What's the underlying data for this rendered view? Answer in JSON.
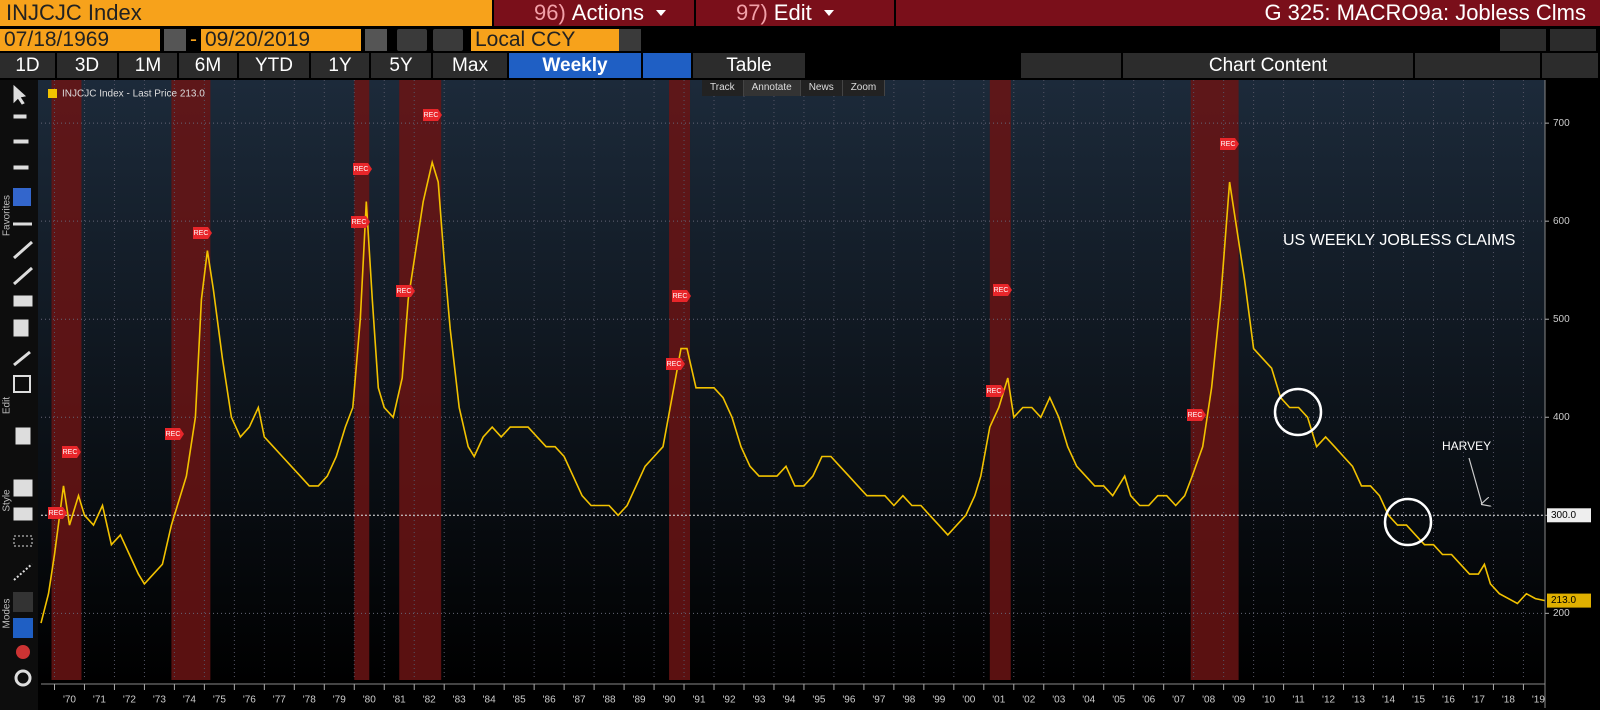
{
  "header": {
    "ticker": "INJCJC Index",
    "actions_num": "96)",
    "actions": "Actions",
    "edit_num": "97)",
    "edit": "Edit",
    "title": "G 325: MACRO9a: Jobless Clms"
  },
  "controls": {
    "start_date": "07/18/1969",
    "date_separator": "-",
    "end_date": "09/20/2019",
    "currency": "Local CCY"
  },
  "tabs": [
    "1D",
    "3D",
    "1M",
    "6M",
    "YTD",
    "1Y",
    "5Y",
    "Max"
  ],
  "frequency": "Weekly",
  "table": "Table",
  "chart_content": "Chart Content",
  "chart_toolbar": [
    "Track",
    "Annotate",
    "News",
    "Zoom"
  ],
  "sidebar": [
    "Favorites",
    "Edit",
    "Style",
    "Modes"
  ],
  "chart_data": {
    "type": "line",
    "x": [
      1969.55,
      1969.8,
      1970.0,
      1970.3,
      1970.5,
      1970.8,
      1971.0,
      1971.3,
      1971.6,
      1971.9,
      1972.2,
      1972.5,
      1972.8,
      1973.0,
      1973.3,
      1973.6,
      1973.9,
      1974.1,
      1974.4,
      1974.7,
      1974.9,
      1975.1,
      1975.3,
      1975.6,
      1975.9,
      1976.2,
      1976.5,
      1976.8,
      1977.0,
      1977.3,
      1977.6,
      1977.9,
      1978.2,
      1978.5,
      1978.8,
      1979.1,
      1979.4,
      1979.7,
      1979.95,
      1980.2,
      1980.4,
      1980.6,
      1980.8,
      1981.0,
      1981.3,
      1981.6,
      1981.8,
      1982.0,
      1982.3,
      1982.6,
      1982.8,
      1983.0,
      1983.2,
      1983.5,
      1983.8,
      1984.0,
      1984.3,
      1984.6,
      1984.9,
      1985.2,
      1985.5,
      1985.8,
      1986.1,
      1986.4,
      1986.7,
      1987.0,
      1987.3,
      1987.6,
      1987.9,
      1988.2,
      1988.5,
      1988.8,
      1989.1,
      1989.4,
      1989.7,
      1990.0,
      1990.3,
      1990.6,
      1990.9,
      1991.1,
      1991.4,
      1991.7,
      1992.0,
      1992.3,
      1992.6,
      1992.9,
      1993.2,
      1993.5,
      1993.8,
      1994.1,
      1994.4,
      1994.7,
      1995.0,
      1995.3,
      1995.6,
      1995.9,
      1996.2,
      1996.5,
      1996.8,
      1997.1,
      1997.4,
      1997.7,
      1998.0,
      1998.3,
      1998.6,
      1998.9,
      1999.2,
      1999.5,
      1999.8,
      2000.1,
      2000.4,
      2000.7,
      2000.9,
      2001.2,
      2001.5,
      2001.8,
      2002.0,
      2002.3,
      2002.6,
      2002.9,
      2003.2,
      2003.5,
      2003.8,
      2004.1,
      2004.4,
      2004.7,
      2005.0,
      2005.3,
      2005.7,
      2005.9,
      2006.2,
      2006.5,
      2006.8,
      2007.1,
      2007.4,
      2007.7,
      2007.95,
      2008.3,
      2008.6,
      2008.9,
      2009.2,
      2009.4,
      2009.7,
      2010.0,
      2010.3,
      2010.6,
      2010.9,
      2011.2,
      2011.5,
      2011.8,
      2012.1,
      2012.4,
      2012.7,
      2013.0,
      2013.3,
      2013.6,
      2013.9,
      2014.2,
      2014.5,
      2014.8,
      2015.1,
      2015.4,
      2015.7,
      2016.0,
      2016.3,
      2016.6,
      2016.9,
      2017.2,
      2017.5,
      2017.7,
      2017.9,
      2018.2,
      2018.5,
      2018.8,
      2019.1,
      2019.4,
      2019.72
    ],
    "series": [
      {
        "name": "INJCJC Index - Last Price 213.0",
        "color": "#f2c200",
        "values": [
          190,
          220,
          260,
          330,
          290,
          320,
          300,
          290,
          310,
          270,
          280,
          260,
          240,
          230,
          240,
          250,
          290,
          310,
          340,
          400,
          520,
          570,
          530,
          460,
          400,
          380,
          390,
          410,
          380,
          370,
          360,
          350,
          340,
          330,
          330,
          340,
          360,
          390,
          410,
          500,
          620,
          520,
          430,
          410,
          400,
          440,
          520,
          560,
          620,
          660,
          640,
          560,
          490,
          410,
          370,
          360,
          380,
          390,
          380,
          390,
          390,
          390,
          380,
          370,
          370,
          360,
          340,
          320,
          310,
          310,
          310,
          300,
          310,
          330,
          350,
          360,
          370,
          420,
          470,
          470,
          430,
          430,
          430,
          420,
          400,
          370,
          350,
          340,
          340,
          340,
          350,
          330,
          330,
          340,
          360,
          360,
          350,
          340,
          330,
          320,
          320,
          320,
          310,
          320,
          310,
          310,
          300,
          290,
          280,
          290,
          300,
          320,
          340,
          390,
          410,
          440,
          400,
          410,
          410,
          400,
          420,
          400,
          370,
          350,
          340,
          330,
          330,
          320,
          340,
          320,
          310,
          310,
          320,
          320,
          310,
          320,
          340,
          370,
          430,
          520,
          640,
          600,
          540,
          470,
          460,
          450,
          420,
          410,
          410,
          400,
          370,
          380,
          370,
          360,
          350,
          330,
          330,
          320,
          300,
          290,
          290,
          280,
          270,
          270,
          260,
          260,
          250,
          240,
          240,
          250,
          230,
          220,
          215,
          210,
          220,
          215,
          213
        ]
      }
    ],
    "xlim": [
      1969.55,
      2019.72
    ],
    "ylim": [
      132,
      744
    ],
    "yticks": [
      200,
      300,
      400,
      500,
      600,
      700
    ],
    "xticks": [
      {
        "value": 1970,
        "label": "'70"
      },
      {
        "value": 1971,
        "label": "'71"
      },
      {
        "value": 1972,
        "label": "'72"
      },
      {
        "value": 1973,
        "label": "'73"
      },
      {
        "value": 1974,
        "label": "'74"
      },
      {
        "value": 1975,
        "label": "'75"
      },
      {
        "value": 1976,
        "label": "'76"
      },
      {
        "value": 1977,
        "label": "'77"
      },
      {
        "value": 1978,
        "label": "'78"
      },
      {
        "value": 1979,
        "label": "'79"
      },
      {
        "value": 1980,
        "label": "'80"
      },
      {
        "value": 1981,
        "label": "'81"
      },
      {
        "value": 1982,
        "label": "'82"
      },
      {
        "value": 1983,
        "label": "'83"
      },
      {
        "value": 1984,
        "label": "'84"
      },
      {
        "value": 1985,
        "label": "'85"
      },
      {
        "value": 1986,
        "label": "'86"
      },
      {
        "value": 1987,
        "label": "'87"
      },
      {
        "value": 1988,
        "label": "'88"
      },
      {
        "value": 1989,
        "label": "'89"
      },
      {
        "value": 1990,
        "label": "'90"
      },
      {
        "value": 1991,
        "label": "'91"
      },
      {
        "value": 1992,
        "label": "'92"
      },
      {
        "value": 1993,
        "label": "'93"
      },
      {
        "value": 1994,
        "label": "'94"
      },
      {
        "value": 1995,
        "label": "'95"
      },
      {
        "value": 1996,
        "label": "'96"
      },
      {
        "value": 1997,
        "label": "'97"
      },
      {
        "value": 1998,
        "label": "'98"
      },
      {
        "value": 1999,
        "label": "'99"
      },
      {
        "value": 2000,
        "label": "'00"
      },
      {
        "value": 2001,
        "label": "'01"
      },
      {
        "value": 2002,
        "label": "'02"
      },
      {
        "value": 2003,
        "label": "'03"
      },
      {
        "value": 2004,
        "label": "'04"
      },
      {
        "value": 2005,
        "label": "'05"
      },
      {
        "value": 2006,
        "label": "'06"
      },
      {
        "value": 2007,
        "label": "'07"
      },
      {
        "value": 2008,
        "label": "'08"
      },
      {
        "value": 2009,
        "label": "'09"
      },
      {
        "value": 2010,
        "label": "'10"
      },
      {
        "value": 2011,
        "label": "'11"
      },
      {
        "value": 2012,
        "label": "'12"
      },
      {
        "value": 2013,
        "label": "'13"
      },
      {
        "value": 2014,
        "label": "'14"
      },
      {
        "value": 2015,
        "label": "'15"
      },
      {
        "value": 2016,
        "label": "'16"
      },
      {
        "value": 2017,
        "label": "'17"
      },
      {
        "value": 2018,
        "label": "'18"
      },
      {
        "value": 2019,
        "label": "'19"
      }
    ],
    "grid": true,
    "recessions": [
      [
        1969.9,
        1970.9
      ],
      [
        1973.9,
        1975.2
      ],
      [
        1980.0,
        1980.5
      ],
      [
        1981.5,
        1982.9
      ],
      [
        1990.5,
        1991.2
      ],
      [
        2001.2,
        2001.9
      ],
      [
        2007.9,
        2009.5
      ]
    ],
    "recession_color": "#6a1414",
    "rec_label": "REC",
    "reference_line": {
      "value": 300,
      "label": "300.0"
    },
    "last_price": {
      "value": 213,
      "label": "213.0"
    },
    "annotations": {
      "title_note": "US WEEKLY JOBLESS CLAIMS",
      "event_note": "HARVEY"
    }
  }
}
